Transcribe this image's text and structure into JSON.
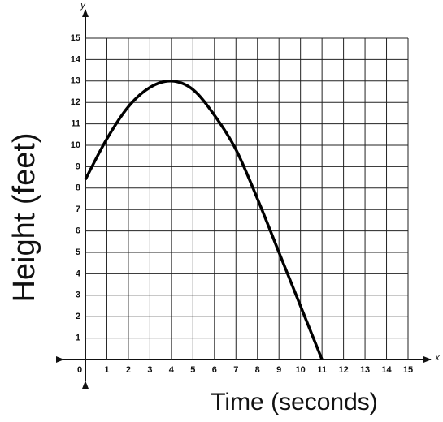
{
  "chart_data": {
    "type": "line",
    "x_label": "Time (seconds)",
    "y_label": "Height (feet)",
    "x_axis_name": "x",
    "y_axis_name": "y",
    "x": [
      0,
      1,
      2,
      3,
      4,
      5,
      6,
      7,
      8,
      9,
      10,
      11
    ],
    "series": [
      {
        "color": "#000000",
        "values": [
          8.4,
          10.3,
          11.8,
          12.7,
          13,
          12.6,
          11.4,
          9.8,
          7.5,
          5.0,
          2.5,
          0
        ]
      }
    ],
    "xlim": [
      0,
      15
    ],
    "ylim": [
      0,
      15
    ],
    "xticks": [
      0,
      1,
      2,
      3,
      4,
      5,
      6,
      7,
      8,
      9,
      10,
      11,
      12,
      13,
      14,
      15
    ],
    "yticks": [
      1,
      2,
      3,
      4,
      5,
      6,
      7,
      8,
      9,
      10,
      11,
      12,
      13,
      14,
      15
    ],
    "grid": true
  }
}
